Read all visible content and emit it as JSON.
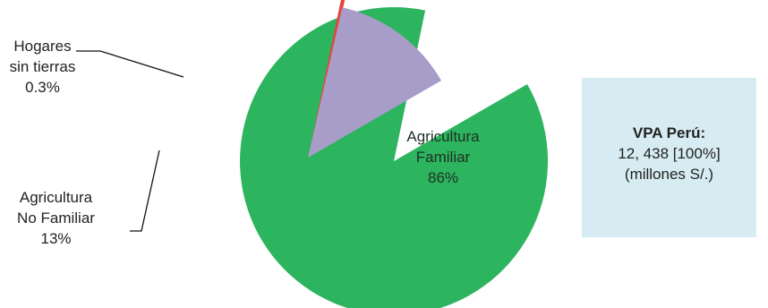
{
  "chart_data": {
    "type": "pie",
    "slices": [
      {
        "label_lines": [
          "Agricultura",
          "Familiar"
        ],
        "value": 86,
        "value_label": "86%",
        "color": "#2db45f"
      },
      {
        "label_lines": [
          "Hogares",
          "sin tierras"
        ],
        "value": 0.3,
        "value_label": "0.3%",
        "color": "#e8433a"
      },
      {
        "label_lines": [
          "Agricultura",
          "No Familiar"
        ],
        "value": 13,
        "value_label": "13%",
        "color": "#a89cc8"
      }
    ],
    "exploded": true,
    "info_box": {
      "title": "VPA Perú:",
      "value": "12, 438 [100%]",
      "unit": "(millones S/.)",
      "background": "#d6ecf2"
    }
  }
}
